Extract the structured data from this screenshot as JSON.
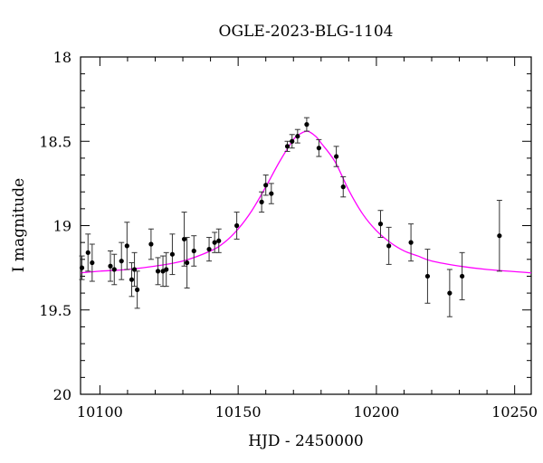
{
  "chart_data": {
    "type": "scatter",
    "title": "OGLE-2023-BLG-1104",
    "xlabel": "HJD - 2450000",
    "ylabel": "I magnitude",
    "xlim": [
      10093,
      10256
    ],
    "ylim": [
      18,
      20
    ],
    "y_inverted": true,
    "grid": false,
    "x_ticks": [
      10100,
      10150,
      10200,
      10250
    ],
    "x_tick_labels": [
      "10100",
      "10150",
      "10200",
      "10250"
    ],
    "y_ticks": [
      18,
      18.5,
      19,
      19.5,
      20
    ],
    "y_tick_labels": [
      "18",
      "18.5",
      "19",
      "19.5",
      "20"
    ],
    "series": [
      {
        "kind": "data",
        "color": "#000000",
        "points": [
          {
            "x": 10093.5,
            "y": 19.25,
            "err": 0.07
          },
          {
            "x": 10095.7,
            "y": 19.16,
            "err": 0.11
          },
          {
            "x": 10097.2,
            "y": 19.22,
            "err": 0.11
          },
          {
            "x": 10103.8,
            "y": 19.24,
            "err": 0.09
          },
          {
            "x": 10105.2,
            "y": 19.26,
            "err": 0.09
          },
          {
            "x": 10107.8,
            "y": 19.21,
            "err": 0.11
          },
          {
            "x": 10109.8,
            "y": 19.12,
            "err": 0.14
          },
          {
            "x": 10111.5,
            "y": 19.32,
            "err": 0.1
          },
          {
            "x": 10112.5,
            "y": 19.26,
            "err": 0.1
          },
          {
            "x": 10113.5,
            "y": 19.38,
            "err": 0.11
          },
          {
            "x": 10118.5,
            "y": 19.11,
            "err": 0.09
          },
          {
            "x": 10121.0,
            "y": 19.27,
            "err": 0.08
          },
          {
            "x": 10122.8,
            "y": 19.27,
            "err": 0.09
          },
          {
            "x": 10124.0,
            "y": 19.26,
            "err": 0.1
          },
          {
            "x": 10126.2,
            "y": 19.17,
            "err": 0.12
          },
          {
            "x": 10130.5,
            "y": 19.08,
            "err": 0.16
          },
          {
            "x": 10131.5,
            "y": 19.22,
            "err": 0.15
          },
          {
            "x": 10134.0,
            "y": 19.15,
            "err": 0.09
          },
          {
            "x": 10139.5,
            "y": 19.14,
            "err": 0.07
          },
          {
            "x": 10141.5,
            "y": 19.1,
            "err": 0.06
          },
          {
            "x": 10143.0,
            "y": 19.09,
            "err": 0.07
          },
          {
            "x": 10149.5,
            "y": 19.0,
            "err": 0.08
          },
          {
            "x": 10158.5,
            "y": 18.86,
            "err": 0.06
          },
          {
            "x": 10160.0,
            "y": 18.76,
            "err": 0.06
          },
          {
            "x": 10162.0,
            "y": 18.81,
            "err": 0.06
          },
          {
            "x": 10167.8,
            "y": 18.53,
            "err": 0.03
          },
          {
            "x": 10169.5,
            "y": 18.5,
            "err": 0.04
          },
          {
            "x": 10171.5,
            "y": 18.47,
            "err": 0.04
          },
          {
            "x": 10174.8,
            "y": 18.4,
            "err": 0.04
          },
          {
            "x": 10179.2,
            "y": 18.54,
            "err": 0.05
          },
          {
            "x": 10185.5,
            "y": 18.59,
            "err": 0.06
          },
          {
            "x": 10188.0,
            "y": 18.77,
            "err": 0.06
          },
          {
            "x": 10201.5,
            "y": 18.99,
            "err": 0.08
          },
          {
            "x": 10204.5,
            "y": 19.12,
            "err": 0.11
          },
          {
            "x": 10212.5,
            "y": 19.1,
            "err": 0.11
          },
          {
            "x": 10218.5,
            "y": 19.3,
            "err": 0.16
          },
          {
            "x": 10226.5,
            "y": 19.4,
            "err": 0.14
          },
          {
            "x": 10231.0,
            "y": 19.3,
            "err": 0.14
          },
          {
            "x": 10244.5,
            "y": 19.06,
            "err": 0.21
          }
        ]
      },
      {
        "kind": "model",
        "color": "#ff00ff",
        "x": [
          10093,
          10100,
          10110,
          10120,
          10130,
          10140,
          10145,
          10150,
          10155,
          10160,
          10165,
          10170,
          10172,
          10175,
          10178,
          10180,
          10185,
          10190,
          10195,
          10200,
          10205,
          10210,
          10215,
          10220,
          10230,
          10240,
          10256
        ],
        "y": [
          19.28,
          19.27,
          19.26,
          19.24,
          19.21,
          19.15,
          19.1,
          19.02,
          18.91,
          18.77,
          18.62,
          18.49,
          18.46,
          18.44,
          18.47,
          18.51,
          18.62,
          18.79,
          18.93,
          19.03,
          19.1,
          19.15,
          19.18,
          19.21,
          19.24,
          19.26,
          19.28
        ]
      }
    ]
  }
}
